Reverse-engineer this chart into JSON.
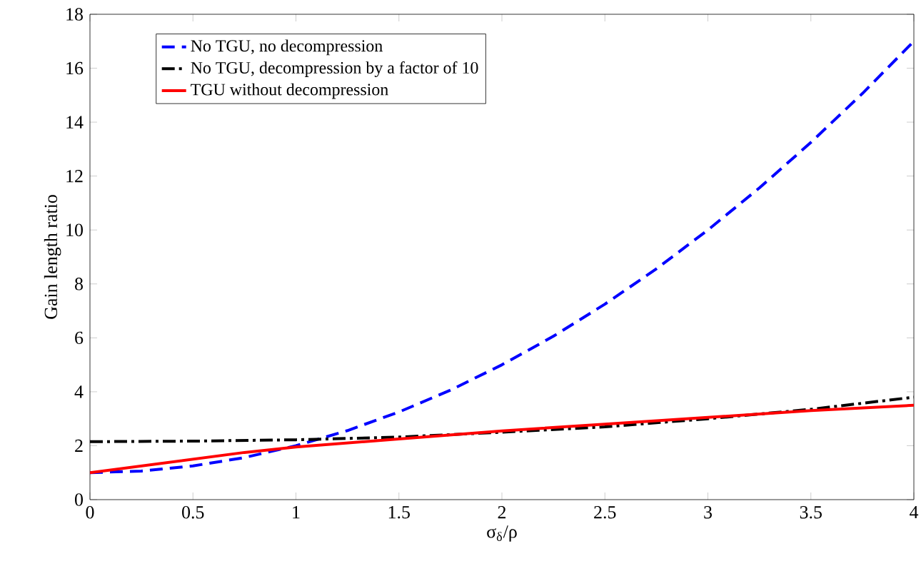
{
  "chart_data": {
    "type": "line",
    "xlabel": "σ$_{δ}$/ρ",
    "ylabel": "Gain length ratio",
    "xlim": [
      0,
      4
    ],
    "ylim": [
      0,
      18
    ],
    "xticks": [
      0,
      0.5,
      1,
      1.5,
      2,
      2.5,
      3,
      3.5,
      4
    ],
    "yticks": [
      0,
      2,
      4,
      6,
      8,
      10,
      12,
      14,
      16,
      18
    ],
    "legend": "top left",
    "grid": false,
    "marker": "none",
    "series": [
      {
        "name": "No TGU, no decompression",
        "color": "#0000ff",
        "line_style": "dashed",
        "x": [
          0,
          0.25,
          0.5,
          0.75,
          1,
          1.25,
          1.5,
          1.75,
          2,
          2.25,
          2.5,
          2.75,
          3,
          3.25,
          3.5,
          3.75,
          4
        ],
        "values": [
          1,
          1.06,
          1.25,
          1.56,
          2,
          2.56,
          3.25,
          4.06,
          5,
          6.06,
          7.25,
          8.56,
          10,
          11.56,
          13.25,
          15.06,
          17
        ]
      },
      {
        "name": "No TGU, decompression by a factor of 10",
        "color": "#000000",
        "line_style": "dashdot",
        "x": [
          0,
          0.5,
          1,
          1.5,
          2,
          2.5,
          3,
          3.5,
          4
        ],
        "values": [
          2.15,
          2.17,
          2.22,
          2.32,
          2.5,
          2.7,
          3.0,
          3.35,
          3.8
        ]
      },
      {
        "name": "TGU without decompression",
        "color": "#ff0000",
        "line_style": "solid",
        "x": [
          0,
          0.25,
          0.5,
          0.75,
          1,
          1.5,
          2,
          2.5,
          3,
          3.5,
          4
        ],
        "values": [
          1,
          1.25,
          1.5,
          1.75,
          1.95,
          2.25,
          2.55,
          2.8,
          3.05,
          3.3,
          3.5
        ]
      }
    ]
  }
}
